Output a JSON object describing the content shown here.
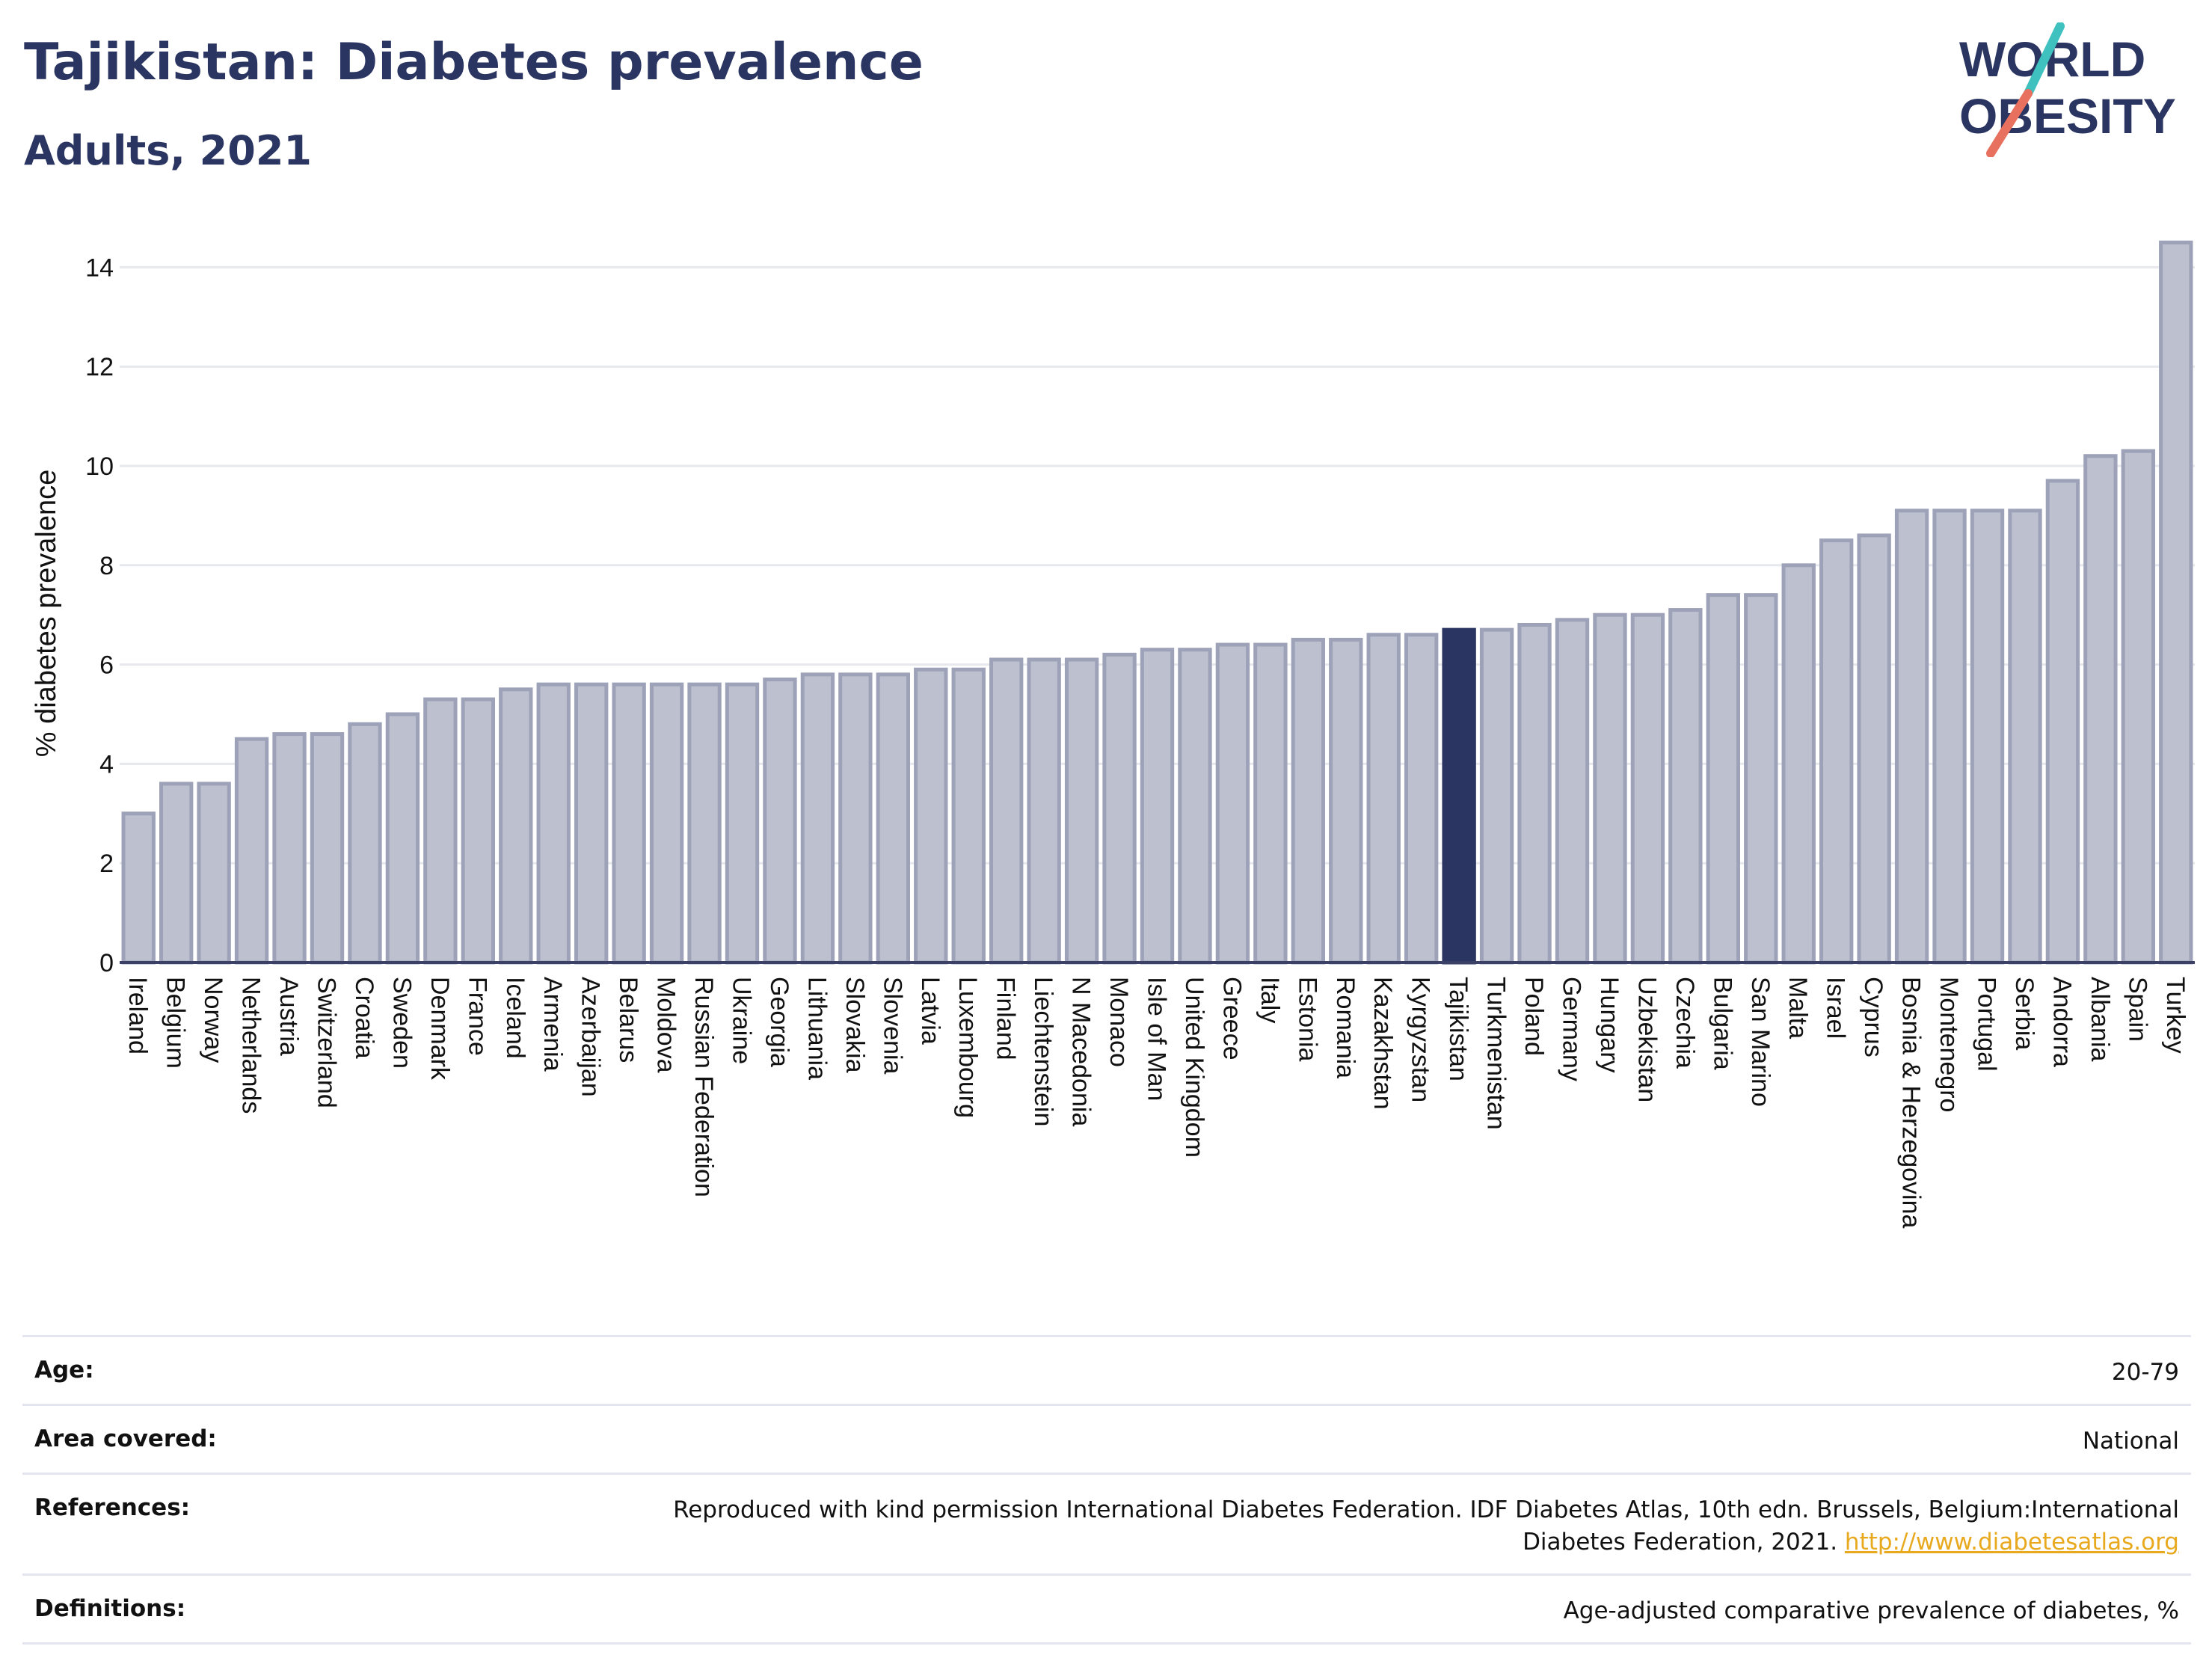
{
  "header": {
    "title": "Tajikistan: Diabetes prevalence",
    "subtitle": "Adults, 2021"
  },
  "logo": {
    "line1": "WORLD",
    "line2": "OBESITY"
  },
  "colors": {
    "highlight_bar": "#2b3561",
    "other_bar_fill": "#bcc0cf",
    "other_bar_stroke": "#9da2b8",
    "grid": "#e6e8ee",
    "text": "#111111",
    "title": "#2b3561",
    "link": "#e8a91e",
    "logo_teal": "#3fc1c0",
    "logo_coral": "#e8705f"
  },
  "chart_data": {
    "type": "bar",
    "title": "Tajikistan: Diabetes prevalence",
    "subtitle": "Adults, 2021",
    "ylabel": "% diabetes prevalence",
    "xlabel": "",
    "ylim": [
      0,
      15
    ],
    "yticks": [
      0,
      2,
      4,
      6,
      8,
      10,
      12,
      14
    ],
    "grid": true,
    "highlight": "Tajikistan",
    "categories": [
      "Ireland",
      "Belgium",
      "Norway",
      "Netherlands",
      "Austria",
      "Switzerland",
      "Croatia",
      "Sweden",
      "Denmark",
      "France",
      "Iceland",
      "Armenia",
      "Azerbaijan",
      "Belarus",
      "Moldova",
      "Russian Federation",
      "Ukraine",
      "Georgia",
      "Lithuania",
      "Slovakia",
      "Slovenia",
      "Latvia",
      "Luxembourg",
      "Finland",
      "Liechtenstein",
      "N Macedonia",
      "Monaco",
      "Isle of Man",
      "United Kingdom",
      "Greece",
      "Italy",
      "Estonia",
      "Romania",
      "Kazakhstan",
      "Kyrgyzstan",
      "Tajikistan",
      "Turkmenistan",
      "Poland",
      "Germany",
      "Hungary",
      "Uzbekistan",
      "Czechia",
      "Bulgaria",
      "San Marino",
      "Malta",
      "Israel",
      "Cyprus",
      "Bosnia & Herzegovina",
      "Montenegro",
      "Portugal",
      "Serbia",
      "Andorra",
      "Albania",
      "Spain",
      "Turkey"
    ],
    "values": [
      3.0,
      3.6,
      3.6,
      4.5,
      4.6,
      4.6,
      4.8,
      5.0,
      5.3,
      5.3,
      5.5,
      5.6,
      5.6,
      5.6,
      5.6,
      5.6,
      5.6,
      5.7,
      5.8,
      5.8,
      5.8,
      5.9,
      5.9,
      6.1,
      6.1,
      6.1,
      6.2,
      6.3,
      6.3,
      6.4,
      6.4,
      6.5,
      6.5,
      6.6,
      6.6,
      6.7,
      6.7,
      6.8,
      6.9,
      7.0,
      7.0,
      7.1,
      7.4,
      7.4,
      8.0,
      8.5,
      8.6,
      9.1,
      9.1,
      9.1,
      9.1,
      9.7,
      10.2,
      10.3,
      14.5
    ]
  },
  "info": {
    "age_label": "Age:",
    "age_value": "20-79",
    "area_label": "Area covered:",
    "area_value": "National",
    "references_label": "References:",
    "references_text": "Reproduced with kind permission International Diabetes Federation.  IDF Diabetes Atlas, 10th edn. Brussels, Belgium:International Diabetes Federation, 2021.",
    "references_link": "http://www.diabetesatlas.org",
    "definitions_label": "Definitions:",
    "definitions_value": "Age-adjusted comparative prevalence of diabetes, %"
  }
}
